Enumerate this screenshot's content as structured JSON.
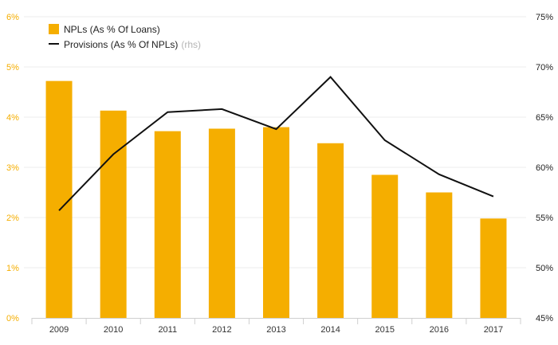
{
  "chart_data": {
    "type": "bar",
    "title": "",
    "categories": [
      "2009",
      "2010",
      "2011",
      "2012",
      "2013",
      "2014",
      "2015",
      "2016",
      "2017"
    ],
    "series": [
      {
        "name": "NPLs (As % Of Loans)",
        "type": "bar",
        "axis": "left",
        "color": "#f5ae00",
        "values": [
          4.72,
          4.13,
          3.72,
          3.77,
          3.8,
          3.48,
          2.85,
          2.5,
          1.98
        ]
      },
      {
        "name": "Provisions (As % Of NPLs)",
        "name_suffix": "(rhs)",
        "type": "line",
        "axis": "right",
        "color": "#111111",
        "values": [
          55.7,
          61.3,
          65.5,
          65.8,
          63.8,
          69.0,
          62.7,
          59.3,
          57.1
        ]
      }
    ],
    "y_left": {
      "ylim": [
        0,
        6
      ],
      "ticks": [
        0,
        1,
        2,
        3,
        4,
        5,
        6
      ],
      "tick_labels": [
        "0%",
        "1%",
        "2%",
        "3%",
        "4%",
        "5%",
        "6%"
      ],
      "color": "#f5ae00"
    },
    "y_right": {
      "ylim": [
        45,
        75
      ],
      "ticks": [
        45,
        50,
        55,
        60,
        65,
        70,
        75
      ],
      "tick_labels": [
        "45%",
        "50%",
        "55%",
        "60%",
        "65%",
        "70%",
        "75%"
      ],
      "color": "#222222"
    },
    "xlabel": "",
    "grid": true,
    "legend_position": "top-left"
  }
}
